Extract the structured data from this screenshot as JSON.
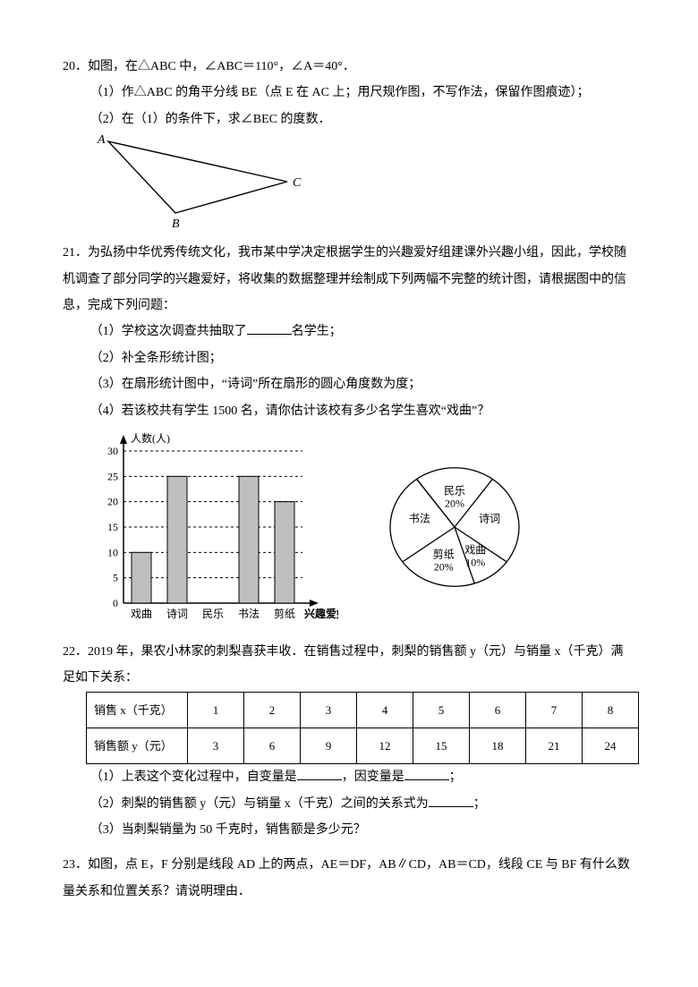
{
  "q20": {
    "num": "20．",
    "stem": "如图，在△ABC 中，∠ABC＝110°，∠A＝40°．",
    "p1": "（1）作△ABC 的角平分线 BE（点 E 在 AC 上；用尺规作图，不写作法，保留作图痕迹）；",
    "p2": "（2）在（1）的条件下，求∠BEC 的度数．",
    "triangle": {
      "A": [
        20,
        10
      ],
      "B": [
        95,
        90
      ],
      "C": [
        220,
        55
      ],
      "Alabel": "A",
      "Blabel": "B",
      "Clabel": "C",
      "stroke": "#000",
      "stroke_width": 1.4
    }
  },
  "q21": {
    "num": "21．",
    "stem": "为弘扬中华优秀传统文化，我市某中学决定根据学生的兴趣爱好组建课外兴趣小组，因此，学校随机调查了部分同学的兴趣爱好，将收集的数据整理并绘制成下列两幅不完整的统计图，请根据图中的信息，完成下列问题：",
    "p1a": "（1）学校这次调查共抽取了",
    "p1b": "名学生；",
    "p2": "（2）补全条形统计图；",
    "p3": "（3）在扇形统计图中，“诗词”所在扇形的圆心角度数为度；",
    "p4": "（4）若该校共有学生 1500 名，请你估计该校有多少名学生喜欢“戏曲”？",
    "bar": {
      "type": "bar",
      "categories": [
        "戏曲",
        "诗词",
        "民乐",
        "书法",
        "剪纸"
      ],
      "values": [
        10,
        25,
        null,
        25,
        20
      ],
      "ylabel": "人数(人)",
      "xlabel": "兴趣爱好",
      "ylim": [
        0,
        30
      ],
      "ytick_step": 5,
      "yticks": [
        0,
        5,
        10,
        15,
        20,
        25,
        30
      ],
      "bar_color": "#bfbfbf",
      "bar_border": "#000000",
      "bar_width": 0.55,
      "grid_dashed_color": "#000000",
      "axis_color": "#000000",
      "background_color": "#ffffff",
      "label_fontsize": 12
    },
    "pie": {
      "type": "pie",
      "slices": [
        {
          "label": "民乐",
          "pct": "20%",
          "angle_deg": 72
        },
        {
          "label": "诗词",
          "pct": "",
          "angle_deg": 90
        },
        {
          "label": "戏曲",
          "pct": "10%",
          "angle_deg": 36
        },
        {
          "label": "剪纸",
          "pct": "20%",
          "angle_deg": 72
        },
        {
          "label": "书法",
          "pct": "",
          "angle_deg": 90
        }
      ],
      "fill": "#ffffff",
      "stroke": "#000000",
      "stroke_width": 1.3,
      "label_fontsize": 12
    }
  },
  "q22": {
    "num": "22．",
    "stem": "2019 年，果农小林家的刺梨喜获丰收．在销售过程中，刺梨的销售额 y（元）与销量 x（千克）满足如下关系：",
    "table": {
      "row1_label": "销售 x（千克）",
      "row2_label": "销售额 y（元）",
      "x": [
        1,
        2,
        3,
        4,
        5,
        6,
        7,
        8
      ],
      "y": [
        3,
        6,
        9,
        12,
        15,
        18,
        21,
        24
      ],
      "border_color": "#000000",
      "cell_padding": 6
    },
    "p1a": "（1）上表这个变化过程中，自变量是",
    "p1b": "，因变量是",
    "p1c": "；",
    "p2a": "（2）刺梨的销售额 y（元）与销量 x（千克）之间的关系式为",
    "p2b": "；",
    "p3": "（3）当刺梨销量为 50 千克时，销售额是多少元？"
  },
  "q23": {
    "num": "23．",
    "stem": "如图，点 E，F 分别是线段 AD 上的两点，AE＝DF，AB∥CD，AB＝CD，线段 CE 与 BF 有什么数量关系和位置关系？请说明理由．"
  }
}
